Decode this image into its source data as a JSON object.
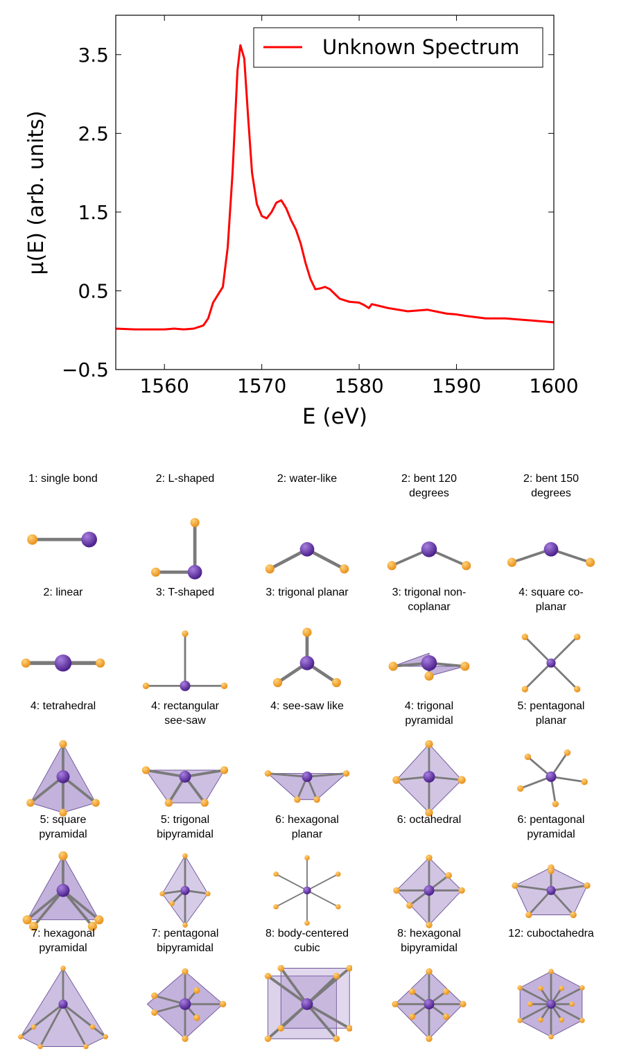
{
  "chart_data": {
    "type": "line",
    "xlabel": "E (eV)",
    "ylabel": "μ(E) (arb. units)",
    "xlim": [
      1555,
      1600
    ],
    "ylim": [
      -0.5,
      4.0
    ],
    "xticks": [
      1560,
      1570,
      1580,
      1590,
      1600
    ],
    "yticks": [
      -0.5,
      0.5,
      1.5,
      2.5,
      3.5
    ],
    "ytick_labels": [
      "−0.5",
      "0.5",
      "1.5",
      "2.5",
      "3.5"
    ],
    "grid": false,
    "legend": "top-right",
    "series": [
      {
        "name": "Unknown Spectrum",
        "color": "#ff0000",
        "x": [
          1555,
          1557,
          1559,
          1560,
          1561,
          1562,
          1563,
          1564,
          1564.5,
          1565,
          1565.5,
          1566,
          1566.5,
          1567,
          1567.5,
          1567.8,
          1568.2,
          1568.6,
          1569,
          1569.5,
          1570,
          1570.5,
          1571,
          1571.5,
          1572,
          1572.5,
          1573,
          1573.5,
          1574,
          1574.5,
          1575,
          1575.5,
          1576,
          1576.5,
          1577,
          1577.5,
          1578,
          1579,
          1580,
          1580.5,
          1581,
          1581.3,
          1582,
          1583,
          1585,
          1587,
          1589,
          1590,
          1591,
          1593,
          1595,
          1597,
          1600
        ],
        "values": [
          0.02,
          0.01,
          0.01,
          0.01,
          0.02,
          0.01,
          0.02,
          0.06,
          0.15,
          0.35,
          0.45,
          0.55,
          1.05,
          2.0,
          3.3,
          3.62,
          3.45,
          2.7,
          2.0,
          1.6,
          1.45,
          1.42,
          1.5,
          1.62,
          1.65,
          1.55,
          1.4,
          1.28,
          1.1,
          0.85,
          0.65,
          0.52,
          0.53,
          0.55,
          0.52,
          0.46,
          0.4,
          0.36,
          0.35,
          0.32,
          0.28,
          0.33,
          0.31,
          0.28,
          0.24,
          0.26,
          0.21,
          0.2,
          0.18,
          0.15,
          0.15,
          0.13,
          0.1
        ]
      }
    ]
  },
  "geometries": [
    {
      "label": "1: single bond",
      "icon": "single-bond-molecule-icon",
      "shape": "single"
    },
    {
      "label": "2: L-shaped",
      "icon": "l-shaped-molecule-icon",
      "shape": "lshape"
    },
    {
      "label": "2: water-like",
      "icon": "water-like-molecule-icon",
      "shape": "water"
    },
    {
      "label": "2: bent 120\ndegrees",
      "icon": "bent-120-molecule-icon",
      "shape": "bent120"
    },
    {
      "label": "2: bent 150\ndegrees",
      "icon": "bent-150-molecule-icon",
      "shape": "bent150"
    },
    {
      "label": "2: linear",
      "icon": "linear-molecule-icon",
      "shape": "linear"
    },
    {
      "label": "3: T-shaped",
      "icon": "t-shaped-molecule-icon",
      "shape": "tshape"
    },
    {
      "label": "3: trigonal planar",
      "icon": "trigonal-planar-molecule-icon",
      "shape": "trigplanar"
    },
    {
      "label": "3: trigonal non-\ncoplanar",
      "icon": "trigonal-non-coplanar-molecule-icon",
      "shape": "trignoncop"
    },
    {
      "label": "4: square co-\nplanar",
      "icon": "square-coplanar-molecule-icon",
      "shape": "squareplanar"
    },
    {
      "label": "4: tetrahedral",
      "icon": "tetrahedral-molecule-icon",
      "shape": "tetra"
    },
    {
      "label": "4: rectangular\nsee-saw",
      "icon": "rectangular-see-saw-molecule-icon",
      "shape": "rectseesaw"
    },
    {
      "label": "4: see-saw like",
      "icon": "see-saw-like-molecule-icon",
      "shape": "seesaw"
    },
    {
      "label": "4: trigonal\npyramidal",
      "icon": "trigonal-pyramidal-molecule-icon",
      "shape": "trigpyr"
    },
    {
      "label": "5: pentagonal\nplanar",
      "icon": "pentagonal-planar-molecule-icon",
      "shape": "pentplanar"
    },
    {
      "label": "5: square\npyramidal",
      "icon": "square-pyramidal-molecule-icon",
      "shape": "sqpyr"
    },
    {
      "label": "5: trigonal\nbipyramidal",
      "icon": "trigonal-bipyramidal-molecule-icon",
      "shape": "trigbipyr"
    },
    {
      "label": "6: hexagonal\nplanar",
      "icon": "hexagonal-planar-molecule-icon",
      "shape": "hexplanar"
    },
    {
      "label": "6: octahedral",
      "icon": "octahedral-molecule-icon",
      "shape": "octa"
    },
    {
      "label": "6: pentagonal\npyramidal",
      "icon": "pentagonal-pyramidal-molecule-icon",
      "shape": "pentpyr"
    },
    {
      "label": "7: hexagonal\npyramidal",
      "icon": "hexagonal-pyramidal-molecule-icon",
      "shape": "hexpyr"
    },
    {
      "label": "7: pentagonal\nbipyramidal",
      "icon": "pentagonal-bipyramidal-molecule-icon",
      "shape": "pentbipyr"
    },
    {
      "label": "8: body-centered\ncubic",
      "icon": "body-centered-cubic-molecule-icon",
      "shape": "bcc"
    },
    {
      "label": "8: hexagonal\nbipyramidal",
      "icon": "hexagonal-bipyramidal-molecule-icon",
      "shape": "hexbipyr"
    },
    {
      "label": "12: cuboctahedra",
      "icon": "cuboctahedra-molecule-icon",
      "shape": "cubocta"
    }
  ],
  "colors": {
    "central_atom": "#4b1f8a",
    "ligand_atom": "#e8901a",
    "bond": "#7a7a7a",
    "polyhedron_fill": "#9b7fc4"
  }
}
